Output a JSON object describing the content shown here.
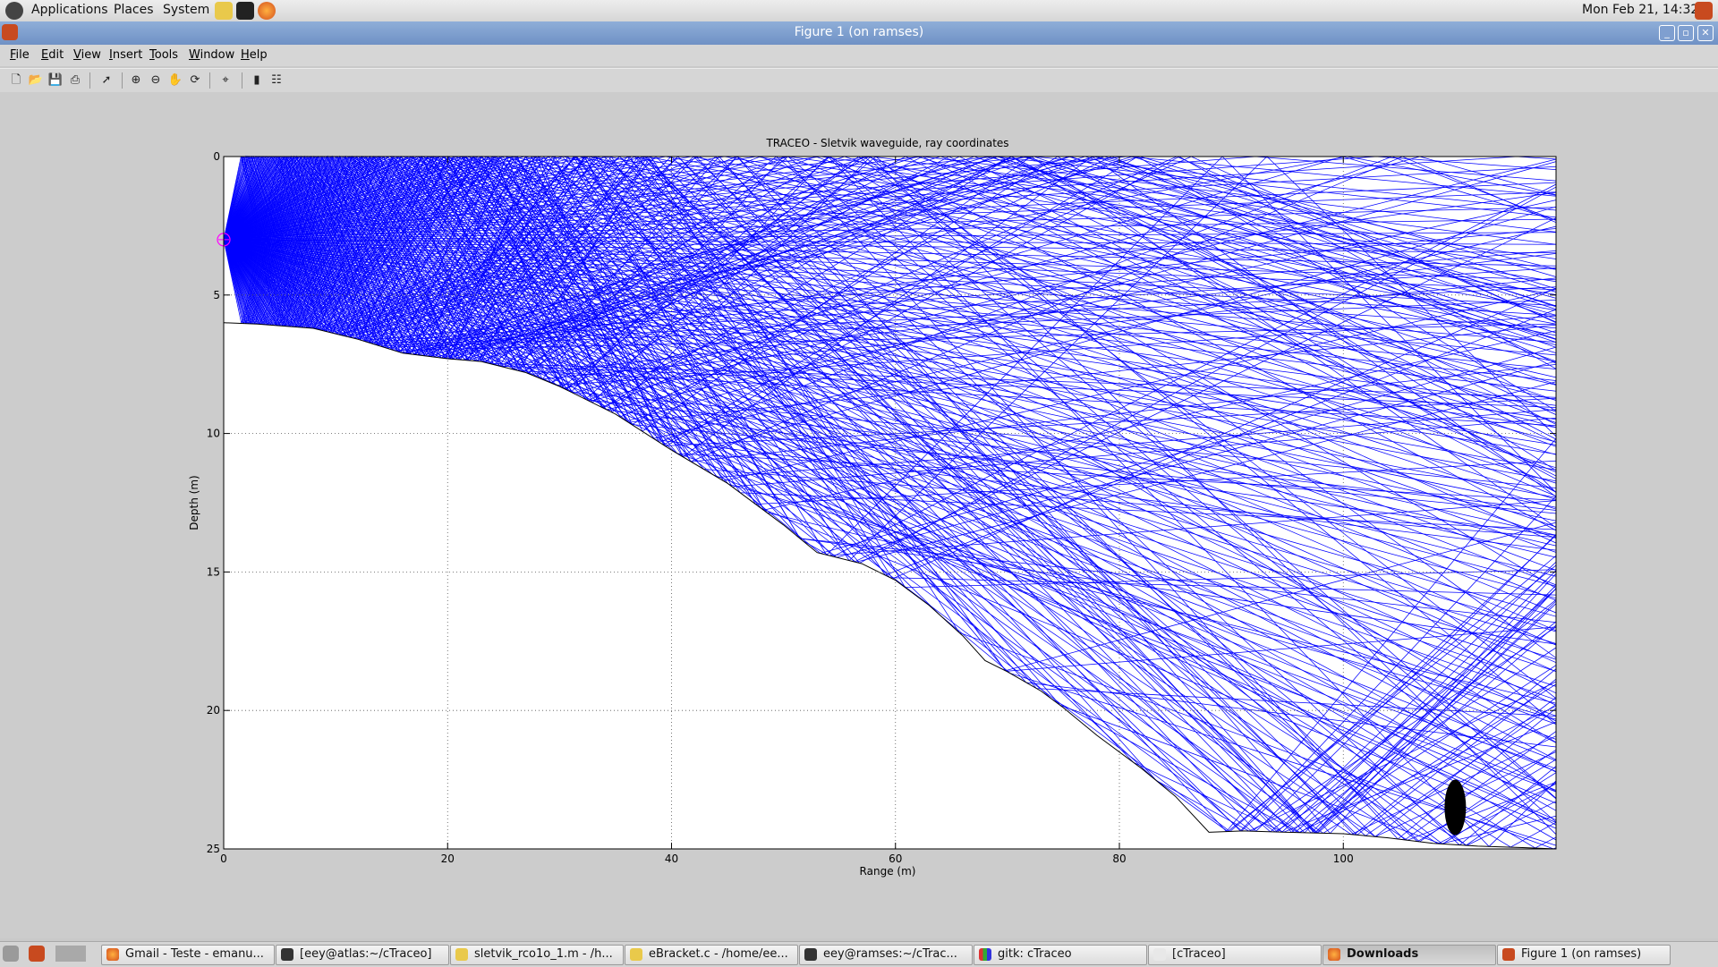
{
  "top_panel": {
    "menus": [
      "Applications",
      "Places",
      "System"
    ],
    "clock": "Mon Feb 21, 14:32"
  },
  "window": {
    "title": "Figure 1  (on ramses)"
  },
  "menubar": {
    "items": [
      "File",
      "Edit",
      "View",
      "Insert",
      "Tools",
      "Window",
      "Help"
    ]
  },
  "toolbar": {
    "buttons": [
      "new-figure-icon",
      "open-file-icon",
      "save-icon",
      "print-icon",
      "select-arrow-icon",
      "zoom-in-icon",
      "zoom-out-icon",
      "pan-hand-icon",
      "rotate-3d-icon",
      "data-cursor-icon",
      "colorbar-icon",
      "legend-icon"
    ]
  },
  "chart_data": {
    "type": "line",
    "title": "TRACEO - Sletvik waveguide, ray coordinates",
    "xlabel": "Range (m)",
    "ylabel": "Depth (m)",
    "xlim": [
      0,
      119
    ],
    "ylim": [
      0,
      25
    ],
    "y_reversed": true,
    "grid": true,
    "xticks": [
      0,
      20,
      40,
      60,
      80,
      100
    ],
    "yticks": [
      0,
      5,
      10,
      15,
      20,
      25
    ],
    "source": {
      "x": 0,
      "y": 3
    },
    "target": {
      "x": 110,
      "y": 23.5
    },
    "bathymetry": {
      "x": [
        0,
        3,
        8,
        12,
        16,
        20,
        23,
        27,
        30,
        35,
        40,
        45,
        50,
        53,
        57,
        60,
        63,
        66,
        68,
        70,
        73,
        75,
        78,
        82,
        85,
        88,
        91,
        95,
        100,
        104,
        108,
        112,
        116,
        119
      ],
      "y": [
        6,
        6.05,
        6.2,
        6.6,
        7.1,
        7.3,
        7.4,
        7.8,
        8.3,
        9.3,
        10.6,
        11.8,
        13.3,
        14.3,
        14.7,
        15.3,
        16.2,
        17.3,
        18.2,
        18.6,
        19.3,
        19.9,
        20.9,
        22.1,
        23.1,
        24.4,
        24.35,
        24.4,
        24.45,
        24.6,
        24.8,
        24.9,
        24.95,
        25
      ]
    },
    "rays": {
      "color": "#0000ff",
      "description_count": 260
    }
  },
  "taskbar": {
    "items": [
      {
        "label": "Gmail - Teste - emanu...",
        "icon": "firefox-icon",
        "active": false
      },
      {
        "label": "[eey@atlas:~/cTraceo]",
        "icon": "terminal-icon",
        "active": false
      },
      {
        "label": "sletvik_rco1o_1.m - /h...",
        "icon": "gedit-icon",
        "active": false
      },
      {
        "label": "eBracket.c - /home/ee...",
        "icon": "gedit-icon",
        "active": false
      },
      {
        "label": "eey@ramses:~/cTrac...",
        "icon": "terminal-icon",
        "active": false
      },
      {
        "label": "gitk: cTraceo",
        "icon": "gitk-icon",
        "active": false
      },
      {
        "label": "[cTraceo]",
        "icon": "folder-icon",
        "active": false
      },
      {
        "label": "Downloads",
        "icon": "firefox-icon",
        "active": true
      },
      {
        "label": "Figure 1  (on ramses)",
        "icon": "matlab-icon",
        "active": false
      }
    ]
  },
  "colors": {
    "ray": "#0000ff",
    "titlebar": "#7f9fd0",
    "source_marker": "#ff00ff"
  }
}
